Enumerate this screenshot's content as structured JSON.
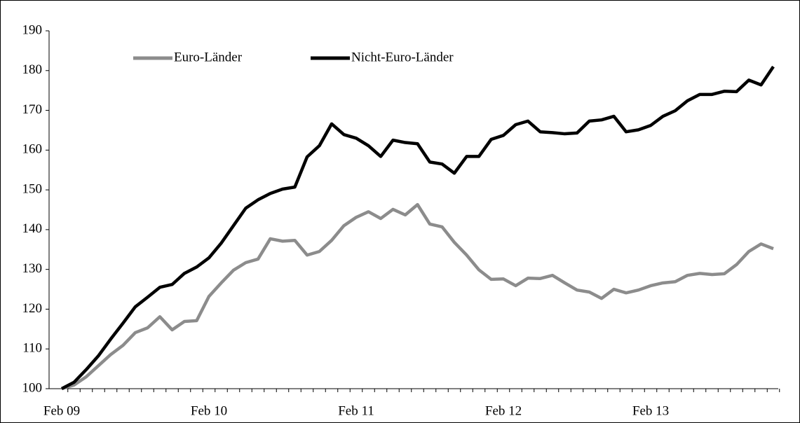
{
  "chart_data": {
    "type": "line",
    "categories": [
      "Feb 09",
      null,
      null,
      null,
      null,
      null,
      null,
      null,
      null,
      null,
      null,
      null,
      "Feb 10",
      null,
      null,
      null,
      null,
      null,
      null,
      null,
      null,
      null,
      null,
      null,
      "Feb 11",
      null,
      null,
      null,
      null,
      null,
      null,
      null,
      null,
      null,
      null,
      null,
      "Feb 12",
      null,
      null,
      null,
      null,
      null,
      null,
      null,
      null,
      null,
      null,
      null,
      "Feb 13",
      null,
      null,
      null,
      null,
      null,
      null,
      null,
      null,
      null,
      null
    ],
    "series": [
      {
        "name": "Euro-Länder",
        "color": "#8c8c8c",
        "values": [
          100,
          100.9,
          103,
          105.8,
          108.6,
          110.9,
          114.1,
          115.3,
          118.1,
          114.8,
          116.9,
          117.1,
          123.2,
          126.6,
          129.8,
          131.7,
          132.6,
          137.7,
          137.1,
          137.3,
          133.6,
          134.5,
          137.3,
          141,
          143.1,
          144.5,
          142.8,
          145.1,
          143.7,
          146.3,
          141.4,
          140.7,
          136.8,
          133.6,
          129.9,
          127.5,
          127.6,
          125.9,
          127.8,
          127.7,
          128.5,
          126.6,
          124.8,
          124.3,
          122.7,
          125,
          124.1,
          124.8,
          125.9,
          126.6,
          126.9,
          128.5,
          129,
          128.7,
          128.9,
          131.2,
          134.5,
          136.4,
          135.2
        ]
      },
      {
        "name": "Nicht-Euro-Länder",
        "color": "#000000",
        "values": [
          100,
          101.6,
          104.8,
          108.3,
          112.5,
          116.5,
          120.6,
          123,
          125.5,
          126.2,
          129,
          130.6,
          132.9,
          136.6,
          141,
          145.4,
          147.5,
          149.1,
          150.2,
          150.7,
          158.3,
          161.1,
          166.6,
          163.9,
          163,
          161.1,
          158.4,
          162.5,
          161.9,
          161.6,
          157,
          156.5,
          154.2,
          158.4,
          158.4,
          162.7,
          163.7,
          166.4,
          167.3,
          164.6,
          164.4,
          164.1,
          164.3,
          167.3,
          167.6,
          168.5,
          164.6,
          165.1,
          166.2,
          168.5,
          169.9,
          172.4,
          174,
          174,
          174.8,
          174.7,
          177.6,
          176.4,
          181
        ]
      }
    ],
    "ylim": [
      100,
      190
    ],
    "yticks": [
      100,
      110,
      120,
      130,
      140,
      150,
      160,
      170,
      180,
      190
    ],
    "legend": "top-left"
  }
}
